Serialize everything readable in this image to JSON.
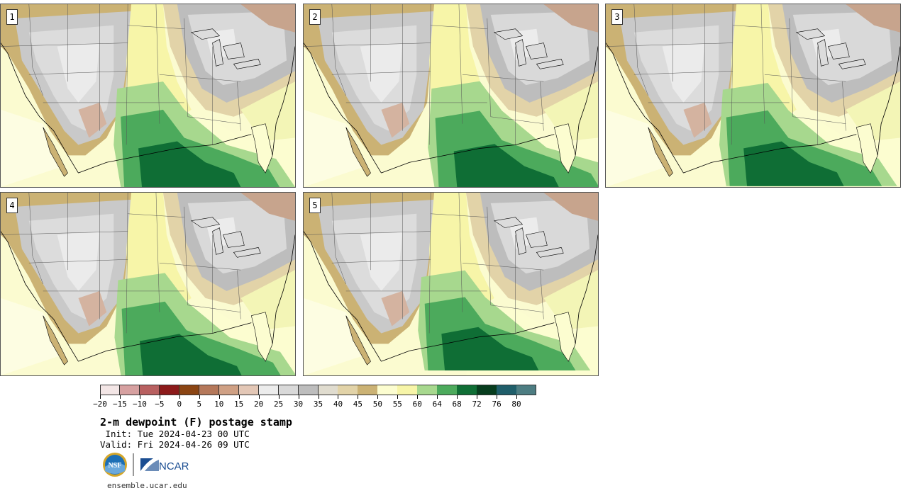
{
  "panels": [
    {
      "label": "1"
    },
    {
      "label": "2"
    },
    {
      "label": "3"
    },
    {
      "label": "4"
    },
    {
      "label": "5"
    }
  ],
  "colorbar": {
    "colors": [
      "#f3e6e6",
      "#d6a0a0",
      "#b86060",
      "#8c1a1a",
      "#8b4513",
      "#b5785a",
      "#cfa084",
      "#e3c7b6",
      "#ececec",
      "#d9d9d9",
      "#bdbdbd",
      "#e0dccf",
      "#e2d3a8",
      "#cbb274",
      "#fcfdd0",
      "#f7f5a8",
      "#a7d88e",
      "#4caa5c",
      "#0f6e35",
      "#073d1e",
      "#1f5e6a",
      "#4d7d82"
    ],
    "tick_labels": [
      "−20",
      "−15",
      "−10",
      "−5",
      "0",
      "5",
      "10",
      "15",
      "20",
      "25",
      "30",
      "35",
      "40",
      "45",
      "50",
      "55",
      "60",
      "64",
      "68",
      "72",
      "76",
      "80"
    ]
  },
  "title": "2-m dewpoint (F) postage stamp",
  "init_line": " Init: Tue 2024-04-23 00 UTC",
  "valid_line": "Valid: Fri 2024-04-26 09 UTC",
  "logos": {
    "nsf": "NSF",
    "ncar": "NCAR"
  },
  "url": "ensemble.ucar.edu"
}
